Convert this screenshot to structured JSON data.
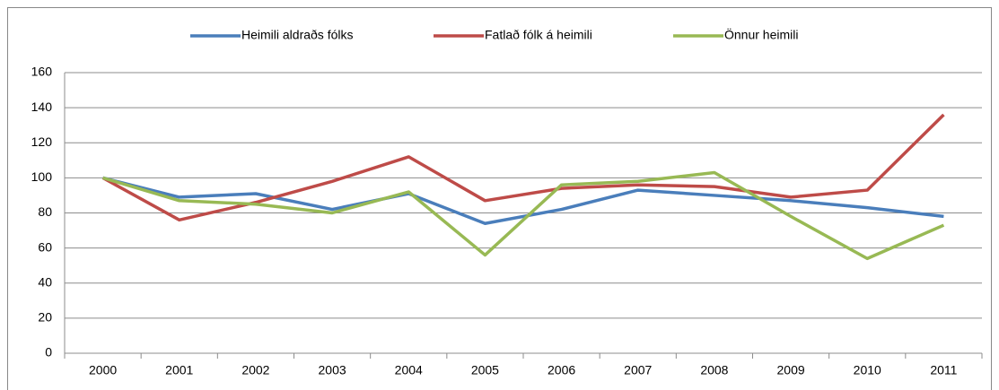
{
  "chart_data": {
    "type": "line",
    "categories": [
      "2000",
      "2001",
      "2002",
      "2003",
      "2004",
      "2005",
      "2006",
      "2007",
      "2008",
      "2009",
      "2010",
      "2011"
    ],
    "series": [
      {
        "name": "Heimili aldraðs fólks",
        "color": "#4a7ebb",
        "values": [
          100,
          89,
          91,
          82,
          91,
          74,
          82,
          93,
          90,
          87,
          83,
          78
        ]
      },
      {
        "name": "Fatlað fólk á heimili",
        "color": "#be4b48",
        "values": [
          100,
          76,
          86,
          98,
          112,
          87,
          94,
          96,
          95,
          89,
          93,
          136
        ]
      },
      {
        "name": "Önnur heimili",
        "color": "#98b954",
        "values": [
          100,
          87,
          85,
          80,
          92,
          56,
          96,
          98,
          103,
          78,
          54,
          73
        ]
      }
    ],
    "ylim": [
      0,
      160
    ],
    "yticks": [
      0,
      20,
      40,
      60,
      80,
      100,
      120,
      140,
      160
    ],
    "grid": true,
    "legend": "top"
  }
}
